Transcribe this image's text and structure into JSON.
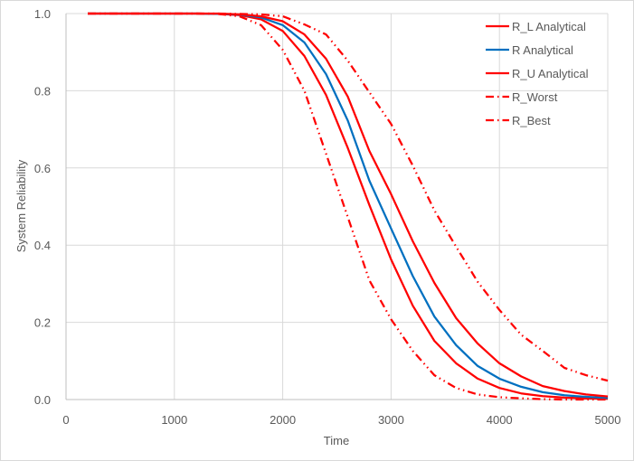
{
  "chart_data": {
    "type": "line",
    "title": "",
    "xlabel": "Time",
    "ylabel": "System Reliability",
    "xlim": [
      0,
      5000
    ],
    "ylim": [
      0,
      1.0
    ],
    "x_ticks": [
      "0",
      "1000",
      "2000",
      "3000",
      "4000",
      "5000"
    ],
    "y_ticks": [
      "0.0",
      "0.2",
      "0.4",
      "0.6",
      "0.8",
      "1.0"
    ],
    "grid": "major both axes",
    "legend_position": "top-right inside",
    "x": [
      200,
      400,
      600,
      800,
      1000,
      1200,
      1400,
      1600,
      1800,
      2000,
      2200,
      2400,
      2600,
      2800,
      3000,
      3200,
      3400,
      3600,
      3800,
      4000,
      4200,
      4400,
      4600,
      4800,
      5000
    ],
    "series": [
      {
        "name": "R_L Analytical",
        "color": "#ff0000",
        "dash": "solid",
        "values": [
          1.0,
          1.0,
          1.0,
          1.0,
          1.0,
          1.0,
          0.999,
          0.996,
          0.985,
          0.955,
          0.89,
          0.789,
          0.652,
          0.504,
          0.363,
          0.243,
          0.152,
          0.094,
          0.054,
          0.03,
          0.016,
          0.009,
          0.005,
          0.003,
          0.002
        ]
      },
      {
        "name": "R Analytical",
        "color": "#0070c0",
        "dash": "solid",
        "values": [
          1.0,
          1.0,
          1.0,
          1.0,
          1.0,
          1.0,
          0.999,
          0.997,
          0.99,
          0.97,
          0.925,
          0.843,
          0.723,
          0.567,
          0.443,
          0.32,
          0.215,
          0.141,
          0.087,
          0.054,
          0.033,
          0.019,
          0.011,
          0.007,
          0.004
        ]
      },
      {
        "name": "R_U Analytical",
        "color": "#ff0000",
        "dash": "solid",
        "values": [
          1.0,
          1.0,
          1.0,
          1.0,
          1.0,
          1.0,
          1.0,
          0.998,
          0.993,
          0.98,
          0.946,
          0.883,
          0.785,
          0.644,
          0.532,
          0.41,
          0.302,
          0.211,
          0.145,
          0.094,
          0.06,
          0.035,
          0.022,
          0.013,
          0.008
        ]
      },
      {
        "name": "R_Worst",
        "color": "#ff0000",
        "dash": "dash-dot-dot",
        "values": [
          1.0,
          1.0,
          1.0,
          1.0,
          1.0,
          1.0,
          0.999,
          0.993,
          0.97,
          0.906,
          0.8,
          0.637,
          0.473,
          0.309,
          0.208,
          0.126,
          0.063,
          0.03,
          0.013,
          0.006,
          0.003,
          0.001,
          0.0,
          0.0,
          0.0
        ]
      },
      {
        "name": "R_Best",
        "color": "#ff0000",
        "dash": "dash-dot-dot",
        "values": [
          1.0,
          1.0,
          1.0,
          1.0,
          1.0,
          1.0,
          1.0,
          0.999,
          0.998,
          0.993,
          0.972,
          0.946,
          0.878,
          0.796,
          0.714,
          0.606,
          0.49,
          0.396,
          0.305,
          0.232,
          0.168,
          0.126,
          0.082,
          0.063,
          0.049
        ]
      }
    ]
  }
}
